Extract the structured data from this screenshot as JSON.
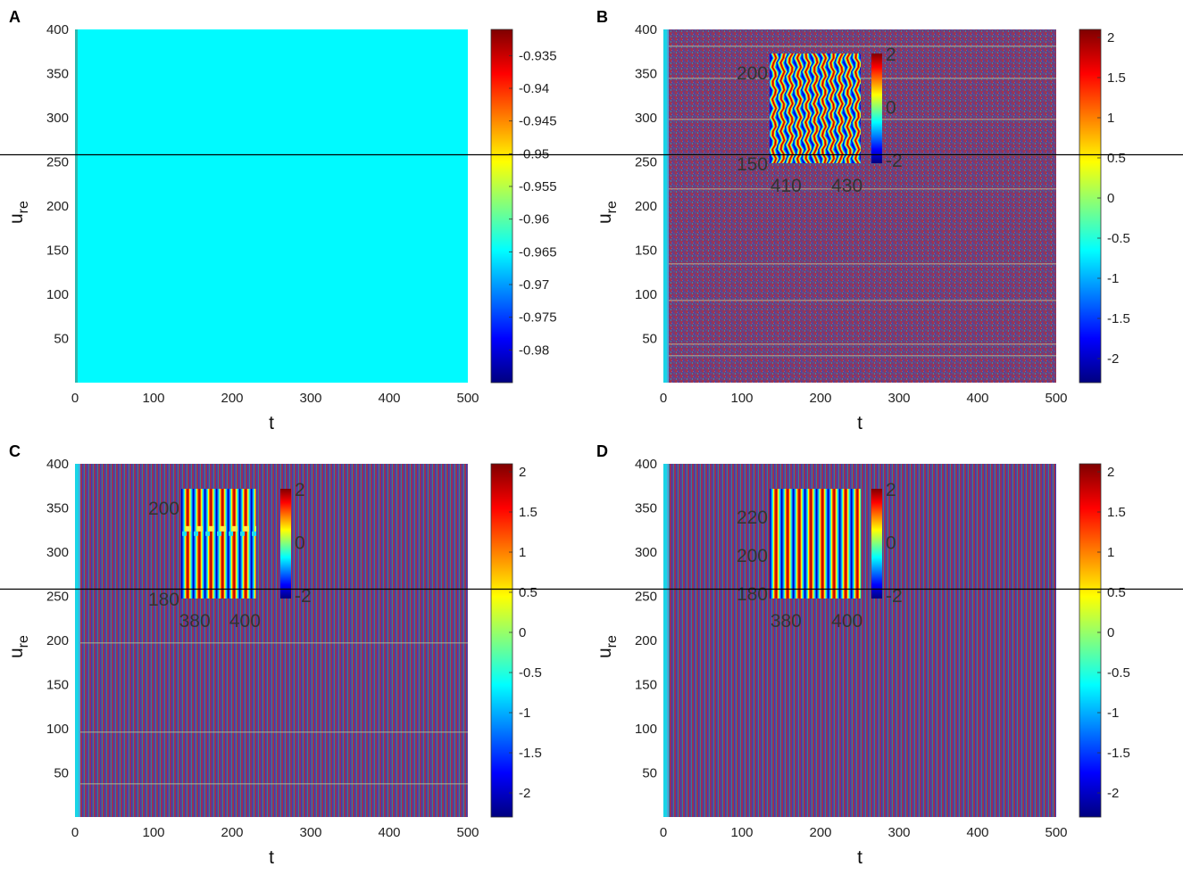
{
  "chart_data": [
    {
      "type": "heatmap",
      "panel_label": "A",
      "pattern": "uniform",
      "xlabel": "t",
      "ylabel_main": "u",
      "ylabel_sub": "re",
      "xlim": [
        0,
        500
      ],
      "ylim": [
        0,
        400
      ],
      "xticks": [
        "0",
        "100",
        "200",
        "300",
        "400",
        "500"
      ],
      "yticks": [
        "50",
        "100",
        "150",
        "200",
        "250",
        "300",
        "350",
        "400"
      ],
      "colorbar": {
        "min": -0.985,
        "max": -0.931,
        "ticks": [
          "-0.935",
          "-0.94",
          "-0.945",
          "-0.95",
          "-0.955",
          "-0.96",
          "-0.965",
          "-0.97",
          "-0.975",
          "-0.98"
        ]
      },
      "field_value": -0.965,
      "inset": null
    },
    {
      "type": "heatmap",
      "panel_label": "B",
      "pattern": "irregular",
      "xlabel": "t",
      "ylabel_main": "u",
      "ylabel_sub": "re",
      "xlim": [
        0,
        500
      ],
      "ylim": [
        0,
        400
      ],
      "xticks": [
        "0",
        "100",
        "200",
        "300",
        "400",
        "500"
      ],
      "yticks": [
        "50",
        "100",
        "150",
        "200",
        "250",
        "300",
        "350",
        "400"
      ],
      "colorbar": {
        "min": -2.3,
        "max": 2.1,
        "ticks": [
          "2",
          "1.5",
          "1",
          "0.5",
          "0",
          "-0.5",
          "-1",
          "-1.5",
          "-2"
        ]
      },
      "inset": {
        "pattern": "wavy",
        "xticks": [
          "410",
          "430"
        ],
        "yticks": [
          "200",
          "150"
        ],
        "colorbar_ticks": [
          "2",
          "0",
          "-2"
        ]
      }
    },
    {
      "type": "heatmap",
      "panel_label": "C",
      "pattern": "stripes-defect",
      "xlabel": "t",
      "ylabel_main": "u",
      "ylabel_sub": "re",
      "xlim": [
        0,
        500
      ],
      "ylim": [
        0,
        400
      ],
      "xticks": [
        "0",
        "100",
        "200",
        "300",
        "400",
        "500"
      ],
      "yticks": [
        "50",
        "100",
        "150",
        "200",
        "250",
        "300",
        "350",
        "400"
      ],
      "colorbar": {
        "min": -2.3,
        "max": 2.1,
        "ticks": [
          "2",
          "1.5",
          "1",
          "0.5",
          "0",
          "-0.5",
          "-1",
          "-1.5",
          "-2"
        ]
      },
      "inset": {
        "pattern": "defect",
        "xticks": [
          "380",
          "400"
        ],
        "yticks": [
          "200",
          "180"
        ],
        "colorbar_ticks": [
          "2",
          "0",
          "-2"
        ]
      }
    },
    {
      "type": "heatmap",
      "panel_label": "D",
      "pattern": "stripes",
      "xlabel": "t",
      "ylabel_main": "u",
      "ylabel_sub": "re",
      "xlim": [
        0,
        500
      ],
      "ylim": [
        0,
        400
      ],
      "xticks": [
        "0",
        "100",
        "200",
        "300",
        "400",
        "500"
      ],
      "yticks": [
        "50",
        "100",
        "150",
        "200",
        "250",
        "300",
        "350",
        "400"
      ],
      "colorbar": {
        "min": -2.3,
        "max": 2.1,
        "ticks": [
          "2",
          "1.5",
          "1",
          "0.5",
          "0",
          "-0.5",
          "-1",
          "-1.5",
          "-2"
        ]
      },
      "inset": {
        "pattern": "straight",
        "xticks": [
          "380",
          "400"
        ],
        "yticks": [
          "220",
          "200",
          "180"
        ],
        "colorbar_ticks": [
          "2",
          "0",
          "-2"
        ]
      }
    }
  ]
}
